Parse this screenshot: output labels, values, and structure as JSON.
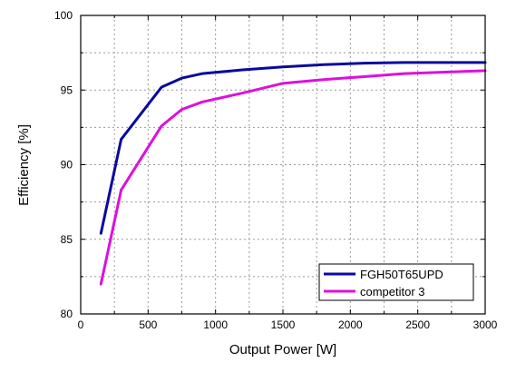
{
  "chart_data": {
    "type": "line",
    "title": "",
    "xlabel": "Output Power [W]",
    "ylabel": "Efficiency [%]",
    "xlim": [
      0,
      3000
    ],
    "ylim": [
      80,
      100
    ],
    "xticks": [
      0,
      500,
      1000,
      1500,
      2000,
      2500,
      3000
    ],
    "yticks": [
      80,
      85,
      90,
      95,
      100
    ],
    "x_minor_step": 250,
    "grid": true,
    "legend_position": "bottom-right",
    "series": [
      {
        "name": "FGH50T65UPD",
        "color": "#0a0a9e",
        "x": [
          150,
          300,
          600,
          750,
          900,
          1200,
          1500,
          1800,
          2100,
          2400,
          2700,
          3000
        ],
        "y": [
          85.4,
          91.7,
          95.2,
          95.8,
          96.1,
          96.35,
          96.55,
          96.7,
          96.8,
          96.85,
          96.85,
          96.85
        ]
      },
      {
        "name": "competitor 3",
        "color": "#dd10dd",
        "x": [
          150,
          300,
          600,
          750,
          900,
          1200,
          1500,
          1800,
          2100,
          2400,
          2700,
          3000
        ],
        "y": [
          82.0,
          88.3,
          92.6,
          93.7,
          94.2,
          94.8,
          95.45,
          95.7,
          95.9,
          96.1,
          96.2,
          96.3
        ]
      }
    ]
  }
}
